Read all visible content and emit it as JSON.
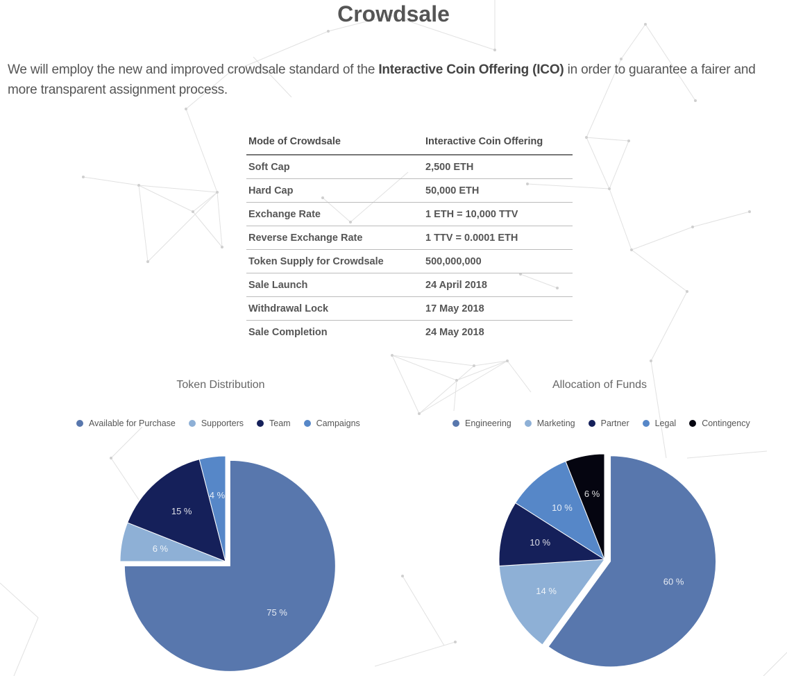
{
  "title": "Crowdsale",
  "intro": {
    "before": "We will employ the new and improved crowdsale standard of the ",
    "emphasis": "Interactive Coin Offering (ICO)",
    "after": " in order to guarantee a fairer and more transparent assignment process."
  },
  "table": {
    "header": [
      "Mode of Crowdsale",
      "Interactive Coin Offering"
    ],
    "rows": [
      [
        "Soft Cap",
        "2,500 ETH"
      ],
      [
        "Hard Cap",
        "50,000 ETH"
      ],
      [
        "Exchange Rate",
        "1 ETH = 10,000 TTV"
      ],
      [
        "Reverse Exchange Rate",
        "1 TTV = 0.0001 ETH"
      ],
      [
        "Token Supply for Crowdsale",
        "500,000,000"
      ],
      [
        "Sale Launch",
        "24 April 2018"
      ],
      [
        "Withdrawal Lock",
        "17 May 2018"
      ],
      [
        "Sale Completion",
        "24 May 2018"
      ]
    ]
  },
  "chart_data": [
    {
      "type": "pie",
      "title": "Token Distribution",
      "legend_position": "top",
      "categories": [
        "Available for Purchase",
        "Supporters",
        "Team",
        "Campaigns"
      ],
      "values": [
        75,
        6,
        15,
        4
      ],
      "labels": [
        "75 %",
        "6 %",
        "15 %",
        "4 %"
      ],
      "colors": [
        "#5877ad",
        "#8eb0d6",
        "#15205a",
        "#5687c8"
      ],
      "exploded": "Available for Purchase"
    },
    {
      "type": "pie",
      "title": "Allocation of Funds",
      "legend_position": "top",
      "categories": [
        "Engineering",
        "Marketing",
        "Partner",
        "Legal",
        "Contingency"
      ],
      "values": [
        60,
        14,
        10,
        10,
        6
      ],
      "labels": [
        "60 %",
        "14 %",
        "10 %",
        "10 %",
        "6 %"
      ],
      "colors": [
        "#5877ad",
        "#8eb0d6",
        "#15205a",
        "#5687c8",
        "#050510"
      ],
      "exploded": "Engineering"
    }
  ]
}
